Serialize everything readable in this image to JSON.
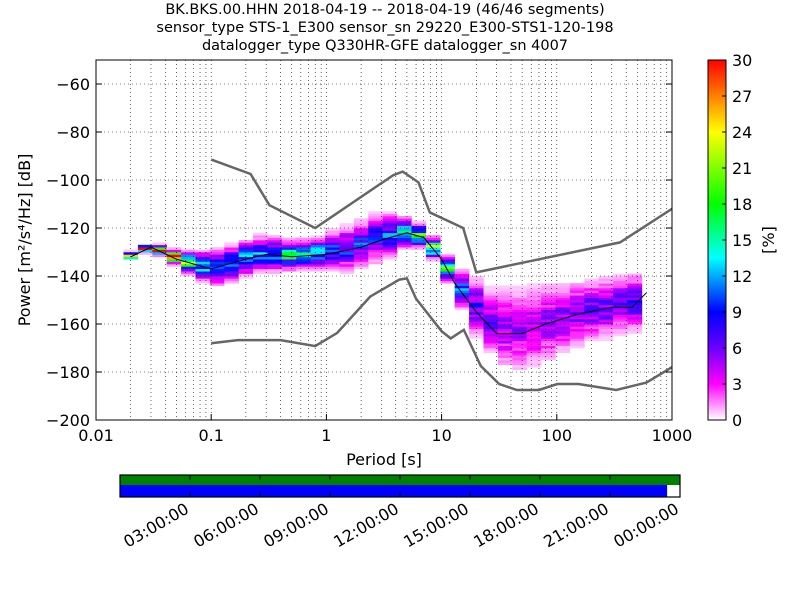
{
  "title_lines": [
    "BK.BKS.00.HHN   2018-04-19 -- 2018-04-19  (46/46 segments)",
    "sensor_type STS-1_E300 sensor_sn 29220_E300-STS1-120-198",
    "datalogger_type Q330HR-GFE datalogger_sn 4007"
  ],
  "chart_data": {
    "type": "heatmap",
    "subtype": "probabilistic power spectral density",
    "xlabel": "Period [s]",
    "ylabel": "Power [m²/s⁴/Hz] [dB]",
    "xscale": "log",
    "xlim": [
      0.01,
      1000
    ],
    "ylim": [
      -200,
      -50
    ],
    "xticks": [
      0.01,
      0.1,
      1,
      10,
      100,
      1000
    ],
    "xtick_labels": [
      "0.01",
      "0.1",
      "1",
      "10",
      "100",
      "1000"
    ],
    "yticks": [
      -200,
      -180,
      -160,
      -140,
      -120,
      -100,
      -80,
      -60
    ],
    "ytick_labels": [
      "−200",
      "−180",
      "−160",
      "−140",
      "−120",
      "−100",
      "−80",
      "−60"
    ],
    "grid": true,
    "colorbar": {
      "label": "[%]",
      "range": [
        0,
        30
      ],
      "ticks": [
        "0",
        "3",
        "6",
        "9",
        "12",
        "15",
        "18",
        "21",
        "24",
        "27",
        "30"
      ],
      "colors": [
        "#ffffff",
        "#ff00ff",
        "#6a00ff",
        "#0000ff",
        "#00ffff",
        "#00ff00",
        "#ffff00",
        "#ff0000"
      ]
    },
    "pdf_bands": [
      {
        "period": 0.02,
        "mode": -132,
        "spread": 1
      },
      {
        "period": 0.03,
        "mode": -128,
        "spread": 1
      },
      {
        "period": 0.05,
        "mode": -133,
        "spread": 2
      },
      {
        "period": 0.08,
        "mode": -136,
        "spread": 4
      },
      {
        "period": 0.12,
        "mode": -137,
        "spread": 5
      },
      {
        "period": 0.2,
        "mode": -133,
        "spread": 5
      },
      {
        "period": 0.3,
        "mode": -131,
        "spread": 5
      },
      {
        "period": 0.5,
        "mode": -132,
        "spread": 4
      },
      {
        "period": 0.8,
        "mode": -131,
        "spread": 4
      },
      {
        "period": 1.5,
        "mode": -129,
        "spread": 6
      },
      {
        "period": 3,
        "mode": -124,
        "spread": 7
      },
      {
        "period": 5,
        "mode": -122,
        "spread": 4
      },
      {
        "period": 7,
        "mode": -124,
        "spread": 3
      },
      {
        "period": 10,
        "mode": -133,
        "spread": 3
      },
      {
        "period": 13,
        "mode": -143,
        "spread": 4
      },
      {
        "period": 20,
        "mode": -153,
        "spread": 8
      },
      {
        "period": 30,
        "mode": -162,
        "spread": 11
      },
      {
        "period": 50,
        "mode": -163,
        "spread": 12
      },
      {
        "period": 80,
        "mode": -160,
        "spread": 11
      },
      {
        "period": 150,
        "mode": -156,
        "spread": 9
      },
      {
        "period": 300,
        "mode": -153,
        "spread": 8
      },
      {
        "period": 600,
        "mode": -150,
        "spread": 8
      }
    ],
    "mean_curve": {
      "period": [
        0.02,
        0.03,
        0.05,
        0.1,
        0.2,
        0.3,
        0.5,
        1,
        2,
        3,
        5,
        7,
        10,
        13,
        20,
        30,
        50,
        80,
        150,
        300,
        450,
        600
      ],
      "db": [
        -132,
        -128,
        -133,
        -137,
        -133,
        -131,
        -132,
        -131,
        -128,
        -125,
        -122,
        -124,
        -133,
        -143,
        -155,
        -164,
        -164,
        -160,
        -156,
        -153,
        -153,
        -147
      ]
    },
    "nhnm": {
      "period": [
        0.1,
        0.22,
        0.32,
        0.8,
        3.8,
        4.6,
        6.3,
        7.9,
        15.4,
        20,
        354,
        1000
      ],
      "db": [
        -91.5,
        -97.5,
        -110.5,
        -120,
        -98,
        -96.5,
        -101,
        -113.5,
        -120,
        -138.5,
        -126,
        -112
      ]
    },
    "nlnm": {
      "period": [
        0.1,
        0.17,
        0.4,
        0.8,
        1.24,
        2.4,
        4.3,
        5,
        6,
        10,
        12,
        15.6,
        21.9,
        31.6,
        45,
        70,
        101,
        154,
        328,
        600,
        1000
      ],
      "db": [
        -168,
        -166.7,
        -166.7,
        -169.2,
        -163.7,
        -148.6,
        -141.5,
        -141,
        -149.4,
        -163,
        -166,
        -162.4,
        -177.5,
        -185,
        -187.5,
        -187.5,
        -185,
        -185,
        -187.5,
        -184.4,
        -178
      ]
    }
  },
  "coverage": {
    "time_labels": [
      "03:00:00",
      "06:00:00",
      "09:00:00",
      "12:00:00",
      "15:00:00",
      "18:00:00",
      "21:00:00",
      "00:00:00"
    ],
    "processed_fraction": 0.977,
    "data_color": "#008000",
    "processed_color": "#0000ff"
  }
}
